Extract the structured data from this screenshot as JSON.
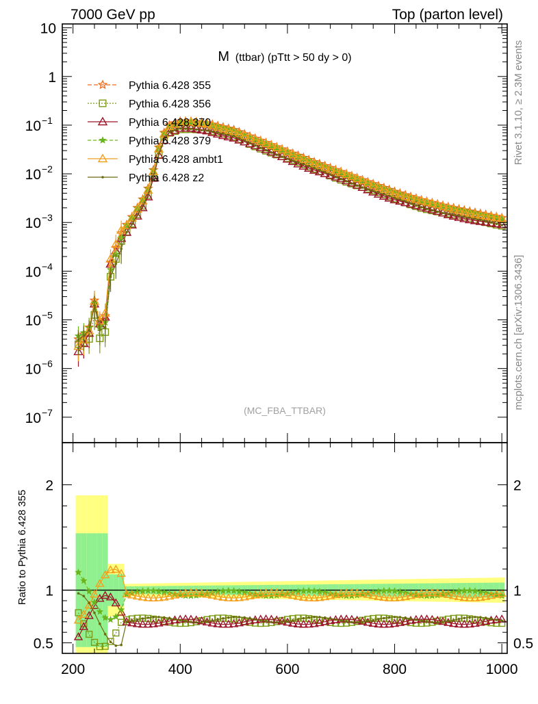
{
  "header": {
    "left": "7000 GeV pp",
    "right": "Top (parton level)"
  },
  "side_labels": {
    "rivet": "Rivet 3.1.10, ≥ 2.3M events",
    "mcplots": "mcplots.cern.ch [arXiv:1306.3436]"
  },
  "chart_data": [
    {
      "type": "line",
      "title_main": "M",
      "title_sub": "(ttbar) (pTtt > 50 dy > 0)",
      "watermark": "(MC_FBA_TTBAR)",
      "y_scale": "log",
      "xlim": [
        180,
        1010
      ],
      "ylim": [
        3e-08,
        12
      ],
      "x_ticks": [
        200,
        400,
        600,
        800,
        1000
      ],
      "y_ticks": [
        {
          "v": 1e-07,
          "label": "10",
          "exp": "−7"
        },
        {
          "v": 1e-06,
          "label": "10",
          "exp": "−6"
        },
        {
          "v": 1e-05,
          "label": "10",
          "exp": "−5"
        },
        {
          "v": 0.0001,
          "label": "10",
          "exp": "−4"
        },
        {
          "v": 0.001,
          "label": "10",
          "exp": "−3"
        },
        {
          "v": 0.01,
          "label": "10",
          "exp": "−2"
        },
        {
          "v": 0.1,
          "label": "10",
          "exp": "−1"
        },
        {
          "v": 1,
          "label": "1",
          "exp": ""
        },
        {
          "v": 10,
          "label": "10",
          "exp": ""
        }
      ],
      "legend_position": "top-left",
      "series": [
        {
          "name": "Pythia 6.428 355",
          "color": "#ee6a1c",
          "marker": "star",
          "dash": "6,3",
          "scale": 1.0
        },
        {
          "name": "Pythia 6.428 356",
          "color": "#7a9a14",
          "marker": "square",
          "dash": "2,2",
          "scale": 0.72
        },
        {
          "name": "Pythia 6.428 370",
          "color": "#9b1428",
          "marker": "triangle",
          "dash": "",
          "scale": 0.7
        },
        {
          "name": "Pythia 6.428 379",
          "color": "#6ab41e",
          "marker": "smallstar",
          "dash": "5,3",
          "scale": 0.97
        },
        {
          "name": "Pythia 6.428 ambt1",
          "color": "#f0a01c",
          "marker": "triangle",
          "dash": "",
          "scale": 0.95
        },
        {
          "name": "Pythia 6.428 z2",
          "color": "#6b6b10",
          "marker": "dot",
          "dash": "",
          "scale": 0.73
        }
      ],
      "reference_curve": {
        "x": [
          210,
          220,
          230,
          240,
          250,
          260,
          265,
          270,
          280,
          290,
          300,
          310,
          320,
          330,
          340,
          350,
          360,
          370,
          380,
          400,
          420,
          450,
          500,
          550,
          600,
          650,
          700,
          750,
          800,
          850,
          900,
          950,
          1000
        ],
        "y": [
          4e-06,
          5e-06,
          7e-06,
          2.5e-05,
          9e-06,
          1.2e-05,
          5e-05,
          0.00015,
          0.0003,
          0.0006,
          0.0009,
          0.0013,
          0.002,
          0.003,
          0.005,
          0.012,
          0.035,
          0.07,
          0.1,
          0.12,
          0.12,
          0.11,
          0.08,
          0.048,
          0.029,
          0.0175,
          0.011,
          0.0068,
          0.0043,
          0.0029,
          0.0021,
          0.0016,
          0.00125
        ]
      }
    },
    {
      "type": "line",
      "ylabel": "Ratio to Pythia 6.428 355",
      "xlim": [
        180,
        1010
      ],
      "ylim": [
        0.4,
        2.4
      ],
      "x_ticks": [
        200,
        400,
        600,
        800,
        1000
      ],
      "y_ticks": [
        0.5,
        1,
        2
      ],
      "ratio_levels": [
        {
          "series": "Pythia 6.428 355",
          "level": 1.0
        },
        {
          "series": "Pythia 6.428 356",
          "level": 0.71
        },
        {
          "series": "Pythia 6.428 370",
          "level": 0.7
        },
        {
          "series": "Pythia 6.428 379",
          "level": 0.97
        },
        {
          "series": "Pythia 6.428 ambt1",
          "level": 0.95
        },
        {
          "series": "Pythia 6.428 z2",
          "level": 0.72
        }
      ]
    }
  ]
}
